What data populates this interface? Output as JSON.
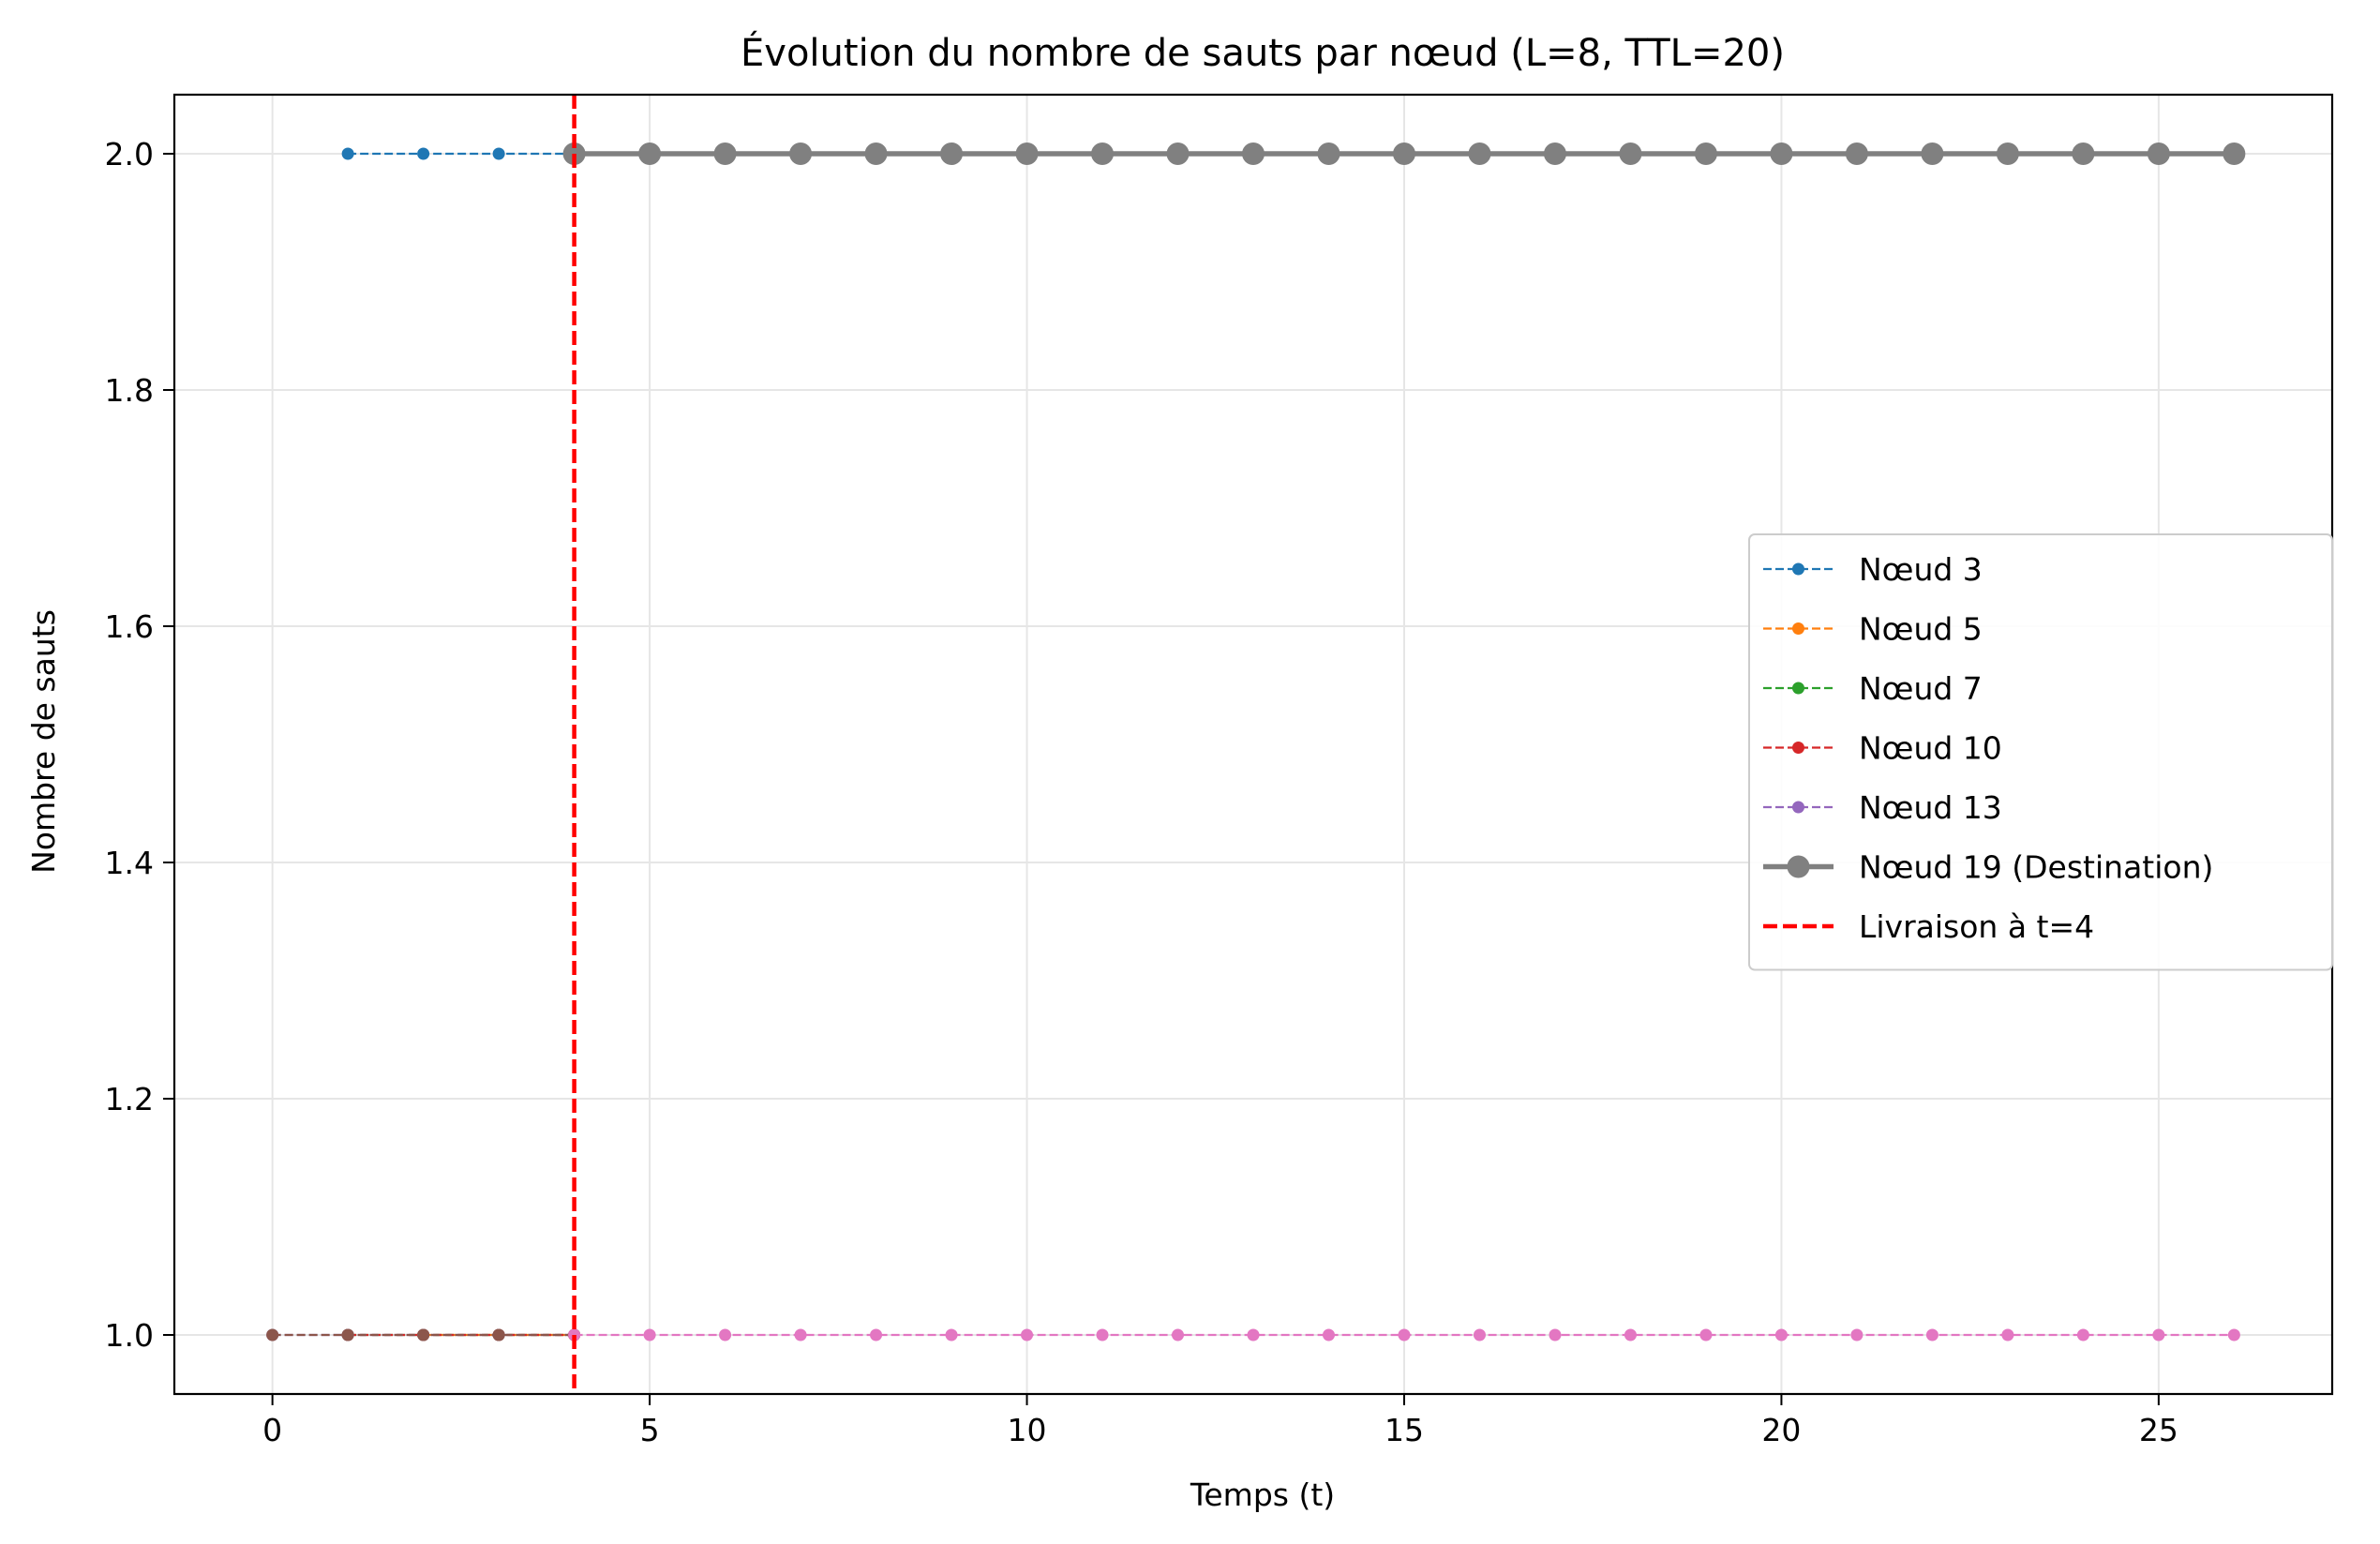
{
  "chart_data": {
    "type": "line",
    "title": "Évolution du nombre de sauts par nœud (L=8, TTL=20)",
    "xlabel": "Temps (t)",
    "ylabel": "Nombre de sauts",
    "xlim": [
      -1.3,
      27.3
    ],
    "ylim": [
      0.95,
      2.05
    ],
    "xticks": [
      0,
      5,
      10,
      15,
      20,
      25
    ],
    "yticks": [
      1.0,
      1.2,
      1.4,
      1.6,
      1.8,
      2.0
    ],
    "xtick_labels": [
      "0",
      "5",
      "10",
      "15",
      "20",
      "25"
    ],
    "ytick_labels": [
      "1.0",
      "1.2",
      "1.4",
      "1.6",
      "1.8",
      "2.0"
    ],
    "grid": true,
    "legend_position": "center-right",
    "series": [
      {
        "name": "Nœud 3",
        "color": "#1f77b4",
        "style": "dashed-dot-marker",
        "x": [
          1,
          2,
          3,
          4
        ],
        "y": [
          2,
          2,
          2,
          2
        ]
      },
      {
        "name": "Nœud 5",
        "color": "#ff7f0e",
        "style": "dashed-dot-marker",
        "x": [
          2,
          3,
          4
        ],
        "y": [
          1,
          1,
          1
        ]
      },
      {
        "name": "Nœud 7",
        "color": "#2ca02c",
        "style": "dashed-dot-marker",
        "x": [
          1,
          2,
          3,
          4
        ],
        "y": [
          1,
          1,
          1,
          1
        ]
      },
      {
        "name": "Nœud 10",
        "color": "#d62728",
        "style": "dashed-dot-marker",
        "x": [
          1,
          2,
          3,
          4
        ],
        "y": [
          1,
          1,
          1,
          1
        ]
      },
      {
        "name": "Nœud 13",
        "color": "#9467bd",
        "style": "dashed-dot-marker",
        "x": [
          0,
          1,
          2,
          3,
          4
        ],
        "y": [
          1,
          1,
          1,
          1,
          1
        ]
      },
      {
        "name": "",
        "color": "#8c564b",
        "style": "dashed-dot-marker",
        "x": [
          0,
          1,
          2,
          3,
          4
        ],
        "y": [
          1,
          1,
          1,
          1,
          1
        ]
      },
      {
        "name": "",
        "color": "#e377c2",
        "style": "dashed-dot-marker",
        "x": [
          4,
          5,
          6,
          7,
          8,
          9,
          10,
          11,
          12,
          13,
          14,
          15,
          16,
          17,
          18,
          19,
          20,
          21,
          22,
          23,
          24,
          25,
          26
        ],
        "y": [
          1,
          1,
          1,
          1,
          1,
          1,
          1,
          1,
          1,
          1,
          1,
          1,
          1,
          1,
          1,
          1,
          1,
          1,
          1,
          1,
          1,
          1,
          1
        ]
      },
      {
        "name": "Nœud 19 (Destination)",
        "color": "#808080",
        "style": "solid-big-marker",
        "x": [
          4,
          5,
          6,
          7,
          8,
          9,
          10,
          11,
          12,
          13,
          14,
          15,
          16,
          17,
          18,
          19,
          20,
          21,
          22,
          23,
          24,
          25,
          26
        ],
        "y": [
          2,
          2,
          2,
          2,
          2,
          2,
          2,
          2,
          2,
          2,
          2,
          2,
          2,
          2,
          2,
          2,
          2,
          2,
          2,
          2,
          2,
          2,
          2
        ]
      }
    ],
    "vline": {
      "x": 4,
      "label": "Livraison à t=4",
      "color": "#ff0000"
    },
    "legend": [
      {
        "label": "Nœud 3",
        "color": "#1f77b4",
        "style": "dashed-dot-marker"
      },
      {
        "label": "Nœud 5",
        "color": "#ff7f0e",
        "style": "dashed-dot-marker"
      },
      {
        "label": "Nœud 7",
        "color": "#2ca02c",
        "style": "dashed-dot-marker"
      },
      {
        "label": "Nœud 10",
        "color": "#d62728",
        "style": "dashed-dot-marker"
      },
      {
        "label": "Nœud 13",
        "color": "#9467bd",
        "style": "dashed-dot-marker"
      },
      {
        "label": "Nœud 19 (Destination)",
        "color": "#808080",
        "style": "solid-big-marker"
      },
      {
        "label": "Livraison à t=4",
        "color": "#ff0000",
        "style": "vline-dashed"
      }
    ]
  }
}
